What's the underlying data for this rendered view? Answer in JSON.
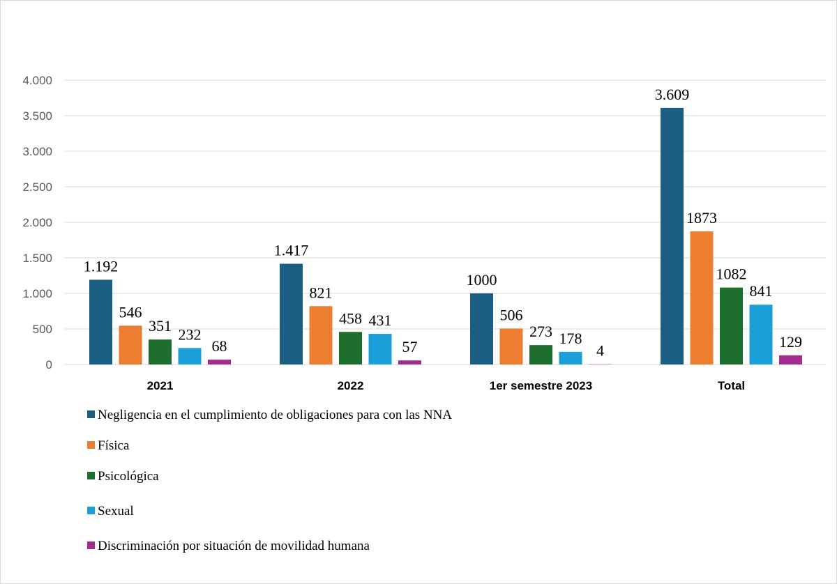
{
  "chart_data": {
    "type": "bar",
    "categories": [
      "2021",
      "2022",
      "1er semestre 2023",
      "Total"
    ],
    "series": [
      {
        "name": "Negligencia en el cumplimiento de obligaciones para con las NNA",
        "color": "#1b5e84",
        "values": [
          1192,
          1417,
          1000,
          3609
        ],
        "labels": [
          "1.192",
          "1.417",
          "1000",
          "3.609"
        ]
      },
      {
        "name": "Física",
        "color": "#ed7d31",
        "values": [
          546,
          821,
          506,
          1873
        ],
        "labels": [
          "546",
          "821",
          "506",
          "1873"
        ]
      },
      {
        "name": "Psicológica",
        "color": "#1e6f2e",
        "values": [
          351,
          458,
          273,
          1082
        ],
        "labels": [
          "351",
          "458",
          "273",
          "1082"
        ]
      },
      {
        "name": "Sexual",
        "color": "#1b9fd8",
        "values": [
          232,
          431,
          178,
          841
        ],
        "labels": [
          "232",
          "431",
          "178",
          "841"
        ]
      },
      {
        "name": "Discriminación por situación de movilidad humana",
        "color": "#a32c8f",
        "values": [
          68,
          57,
          4,
          129
        ],
        "labels": [
          "68",
          "57",
          "4",
          "129"
        ]
      }
    ],
    "ylim": [
      0,
      4000
    ],
    "yticks": [
      0,
      500,
      1000,
      1500,
      2000,
      2500,
      3000,
      3500,
      4000
    ],
    "ytick_labels": [
      "0",
      "500",
      "1.000",
      "1.500",
      "2.000",
      "2.500",
      "3.000",
      "3.500",
      "4.000"
    ],
    "grid": true,
    "legend_position": "bottom-left",
    "title": "",
    "xlabel": "",
    "ylabel": ""
  }
}
